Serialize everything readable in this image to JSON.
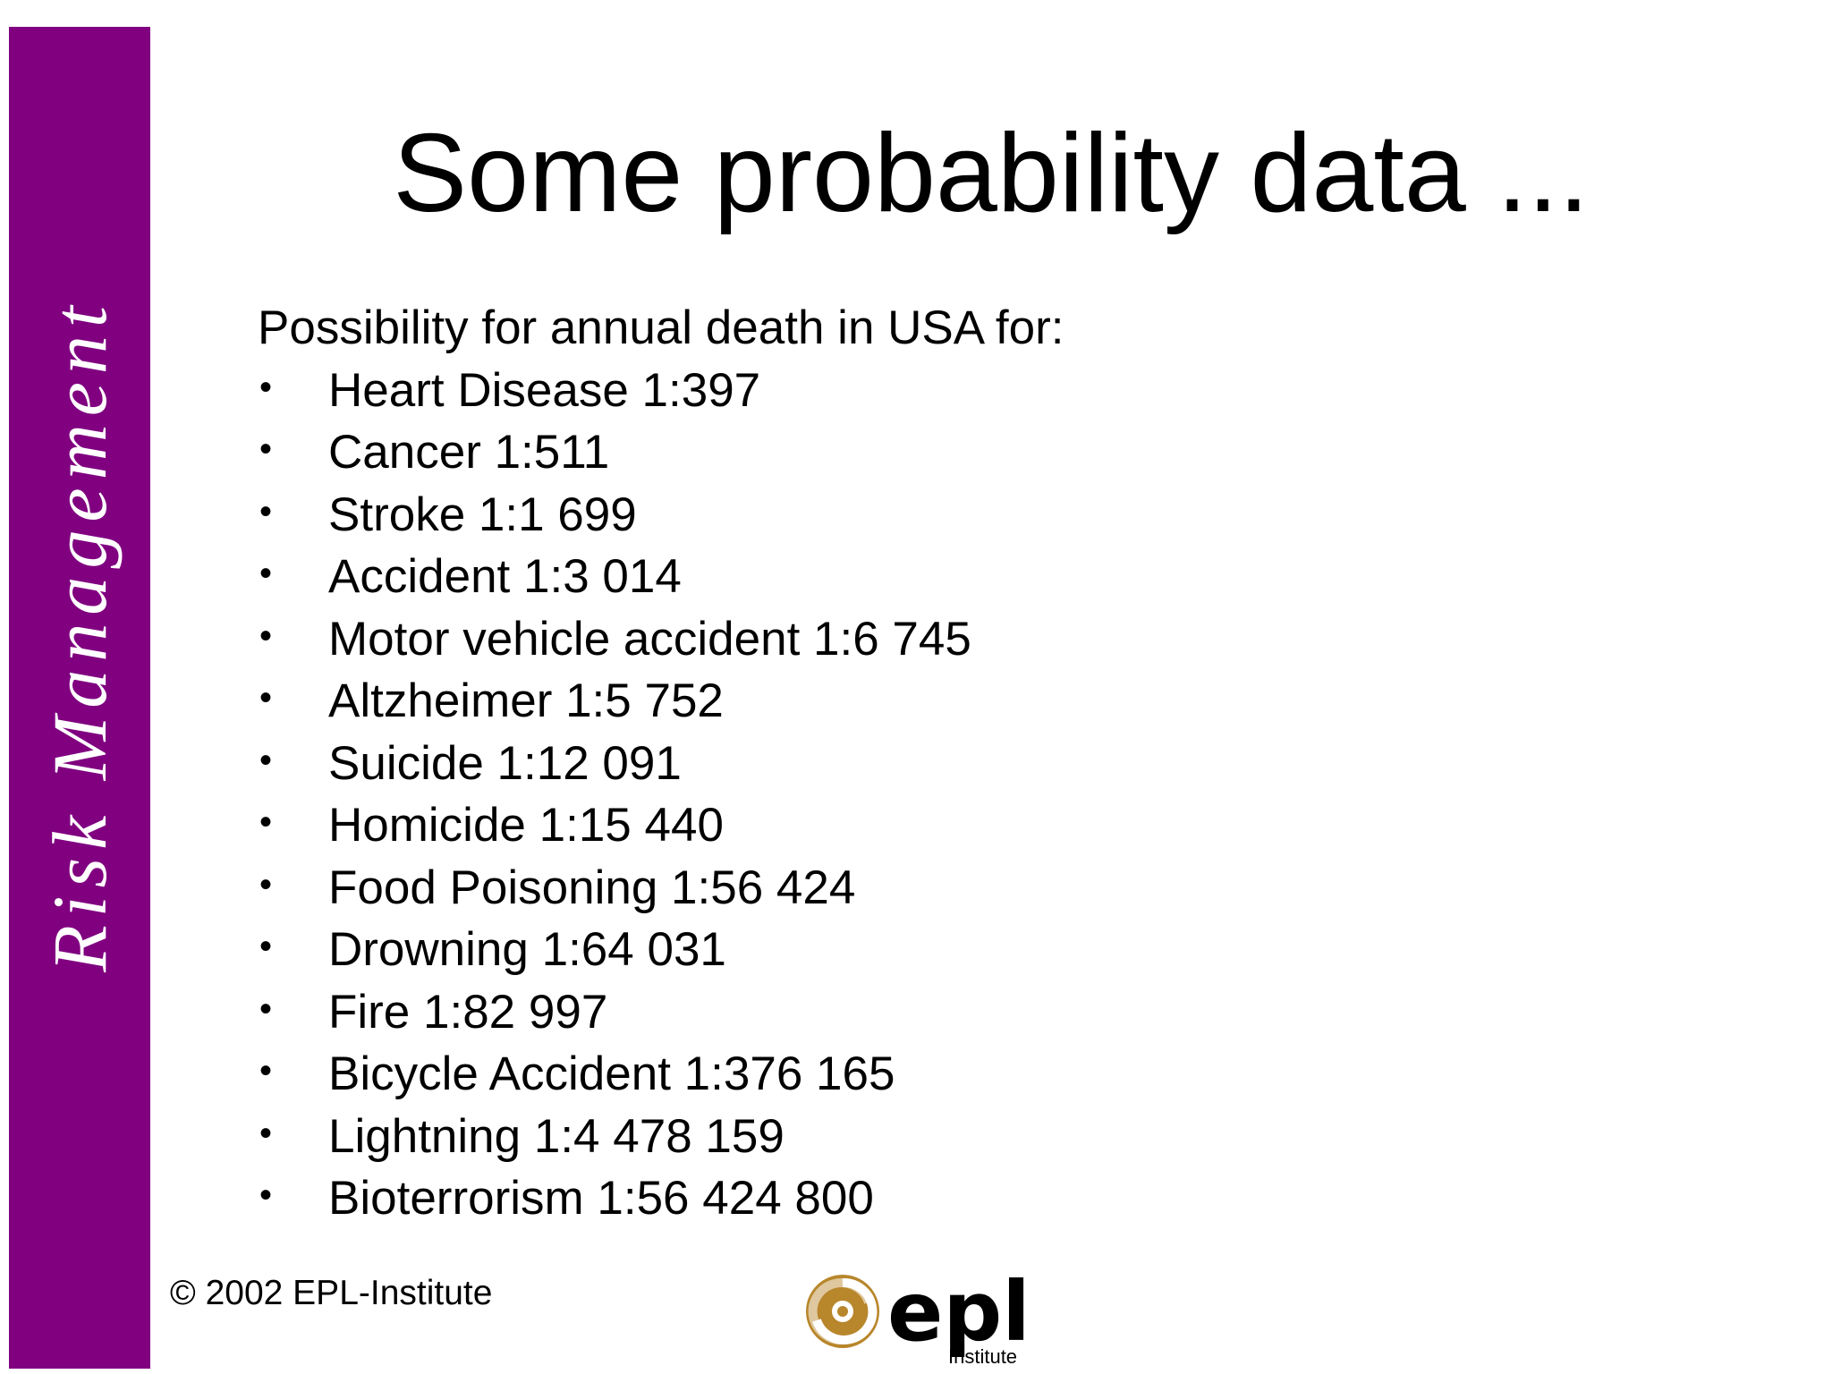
{
  "sidebar": {
    "text": "Risk Management",
    "color": "#800080"
  },
  "slide": {
    "title": "Some probability data ...",
    "intro": "Possibility for annual death in USA for:",
    "items": [
      {
        "label": "Heart Disease 1:397"
      },
      {
        "label": "Cancer 1:511"
      },
      {
        "label": "Stroke 1:1 699"
      },
      {
        "label": "Accident 1:3 014"
      },
      {
        "label": "Motor vehicle accident 1:6 745"
      },
      {
        "label": "Altzheimer 1:5 752"
      },
      {
        "label": "Suicide 1:12 091"
      },
      {
        "label": "Homicide 1:15 440"
      },
      {
        "label": "Food Poisoning 1:56 424"
      },
      {
        "label": "Drowning 1:64 031"
      },
      {
        "label": "Fire 1:82 997"
      },
      {
        "label": "Bicycle Accident 1:376 165"
      },
      {
        "label": "Lightning 1:4 478 159"
      },
      {
        "label": "Bioterrorism 1:56 424 800"
      }
    ],
    "bullet_glyph": "•"
  },
  "footer": {
    "copyright": "© 2002 EPL-Institute",
    "logo": {
      "wordmark": "epl",
      "subtext": "Institute",
      "icon": "swirl-emblem-icon",
      "emblem_color": "#B8862B"
    }
  }
}
